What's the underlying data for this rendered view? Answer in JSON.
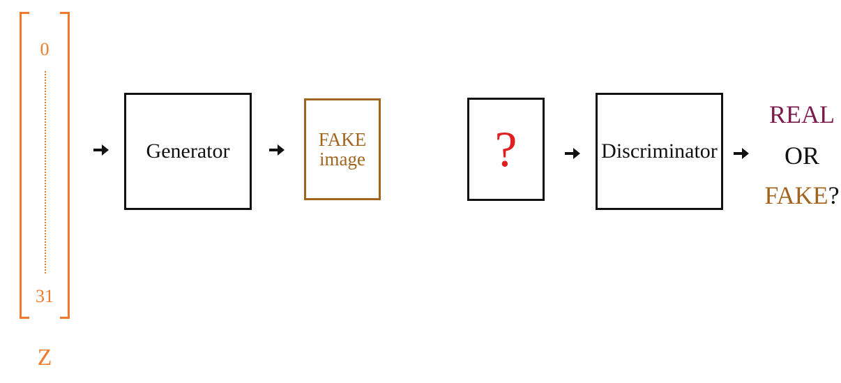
{
  "latent": {
    "top_index": "0",
    "bottom_index": "31",
    "label": "Z",
    "color": "#f07a2b"
  },
  "generator": {
    "label": "Generator"
  },
  "fake_image": {
    "line1": "FAKE",
    "line2": "image",
    "color": "#a0641e"
  },
  "input_box": {
    "symbol": "?",
    "color": "#e02020"
  },
  "discriminator": {
    "label": "Discriminator"
  },
  "output": {
    "real": "REAL",
    "or": "OR",
    "fake": "FAKE",
    "question_mark": "?",
    "real_color": "#7b1a4b",
    "fake_color": "#a0641e"
  },
  "icons": [
    "arrow-right-icon"
  ]
}
